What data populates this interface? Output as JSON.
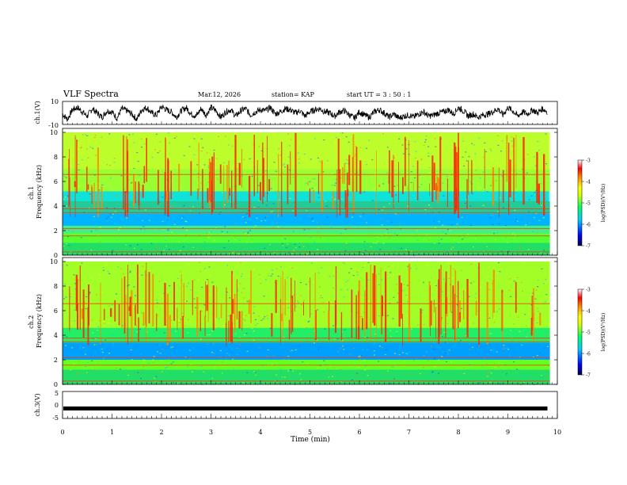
{
  "header": {
    "title": "VLF Spectra",
    "date": "Mar.12, 2026",
    "station": "station= KAP",
    "start": "start UT =  3 : 50 : 1"
  },
  "chart_data": [
    {
      "type": "line",
      "name": "ch1-waveform",
      "ylabel": "ch.1(V)",
      "ylim": [
        -10,
        10
      ],
      "ytick_labels": [
        "10",
        "-10"
      ],
      "xlim": [
        0,
        10
      ],
      "x_end": 9.8,
      "series": [
        {
          "name": "ch.1",
          "x": [
            0,
            0.1,
            0.2,
            0.3,
            0.4,
            0.5,
            0.6,
            0.7,
            0.8,
            0.9,
            1.0,
            1.1,
            1.2,
            1.3,
            1.4,
            1.5,
            1.6,
            1.7,
            1.8,
            1.9,
            2.0,
            2.1,
            2.2,
            2.3,
            2.4,
            2.5,
            2.6,
            2.7,
            2.8,
            2.9,
            3.0,
            3.1,
            3.2,
            3.3,
            3.4,
            3.5,
            3.6,
            3.7,
            3.8,
            3.9,
            4.0,
            4.1,
            4.2,
            4.3,
            4.4,
            4.5,
            4.6,
            4.7,
            4.8,
            4.9,
            5.0,
            5.1,
            5.2,
            5.3,
            5.4,
            5.5,
            5.6,
            5.7,
            5.8,
            5.9,
            6.0,
            6.1,
            6.2,
            6.3,
            6.4,
            6.5,
            6.6,
            6.7,
            6.8,
            6.9,
            7.0,
            7.1,
            7.2,
            7.3,
            7.4,
            7.5,
            7.6,
            7.7,
            7.8,
            7.9,
            8.0,
            8.1,
            8.2,
            8.3,
            8.4,
            8.5,
            8.6,
            8.7,
            8.8,
            8.9,
            9.0,
            9.1,
            9.2,
            9.3,
            9.4,
            9.5,
            9.6,
            9.7,
            9.8
          ],
          "values": [
            -1,
            -6,
            3,
            5,
            1,
            -3,
            4,
            0,
            -4,
            2,
            1,
            -5,
            4,
            2,
            -1,
            -6,
            3,
            5,
            0,
            -2,
            6,
            3,
            1,
            -4,
            2,
            5,
            -1,
            -3,
            4,
            -2,
            5,
            2,
            -4,
            1,
            3,
            -3,
            2,
            4,
            -2,
            1,
            3,
            2,
            5,
            -1,
            1,
            4,
            3,
            0,
            2,
            -3,
            1,
            3,
            4,
            1,
            0,
            -3,
            1,
            2,
            -2,
            -5,
            1,
            -2,
            -4,
            1,
            3,
            0,
            -4,
            -1,
            -5,
            -3,
            -2,
            -4,
            -1,
            1,
            -3,
            -2,
            0,
            1,
            3,
            -1,
            5,
            2,
            -3,
            -1,
            -4,
            -2,
            -1,
            1,
            4,
            -2,
            5,
            2,
            -3,
            1,
            -1,
            3,
            0,
            4,
            1
          ]
        }
      ]
    },
    {
      "type": "heatmap",
      "name": "ch1-spectrogram",
      "ylabel": "ch.1\nFrequency (kHz)",
      "ylim": [
        0,
        10
      ],
      "yticks": [
        0,
        2,
        4,
        6,
        8,
        10
      ],
      "ytick_labels": [
        "0",
        "2",
        "4",
        "6",
        "8",
        "10"
      ],
      "xlim": [
        0,
        10
      ],
      "colorbar": {
        "label": "log(PSD)(V²/Hz)",
        "range": [
          -7,
          -3
        ],
        "ticks": [
          -3,
          -4,
          -5,
          -6,
          -7
        ],
        "tick_labels": [
          "-3",
          "-4",
          "-5",
          "-6",
          "-7"
        ],
        "colors": [
          "#000044",
          "#0000ff",
          "#00ccff",
          "#00ff66",
          "#ccff00",
          "#ffff00",
          "#ff8800",
          "#ff0000",
          "#ffffff"
        ]
      }
    },
    {
      "type": "heatmap",
      "name": "ch2-spectrogram",
      "ylabel": "ch.2\nFrequency (kHz)",
      "ylim": [
        0,
        10
      ],
      "yticks": [
        0,
        2,
        4,
        6,
        8,
        10
      ],
      "ytick_labels": [
        "0",
        "2",
        "4",
        "6",
        "8",
        "10"
      ],
      "xlim": [
        0,
        10
      ],
      "colorbar": {
        "label": "log(PSD)(V²/Hz)",
        "range": [
          -7,
          -3
        ],
        "ticks": [
          -3,
          -4,
          -5,
          -6,
          -7
        ],
        "tick_labels": [
          "-3",
          "-4",
          "-5",
          "-6",
          "-7"
        ],
        "colors": [
          "#000044",
          "#0000ff",
          "#00ccff",
          "#00ff66",
          "#ccff00",
          "#ffff00",
          "#ff8800",
          "#ff0000",
          "#ffffff"
        ]
      }
    },
    {
      "type": "line",
      "name": "ch3-waveform",
      "ylabel": "ch.3(V)",
      "ylim": [
        -5,
        5
      ],
      "ytick_labels": [
        "5",
        "0",
        "-5"
      ],
      "xlim": [
        0,
        10
      ],
      "level": -1.3,
      "x_end": 9.8,
      "xlabel": "Time (min)",
      "xticks": [
        0,
        1,
        2,
        3,
        4,
        5,
        6,
        7,
        8,
        9,
        10
      ],
      "xtick_labels": [
        "0",
        "1",
        "2",
        "3",
        "4",
        "5",
        "6",
        "7",
        "8",
        "9",
        "10"
      ]
    }
  ]
}
